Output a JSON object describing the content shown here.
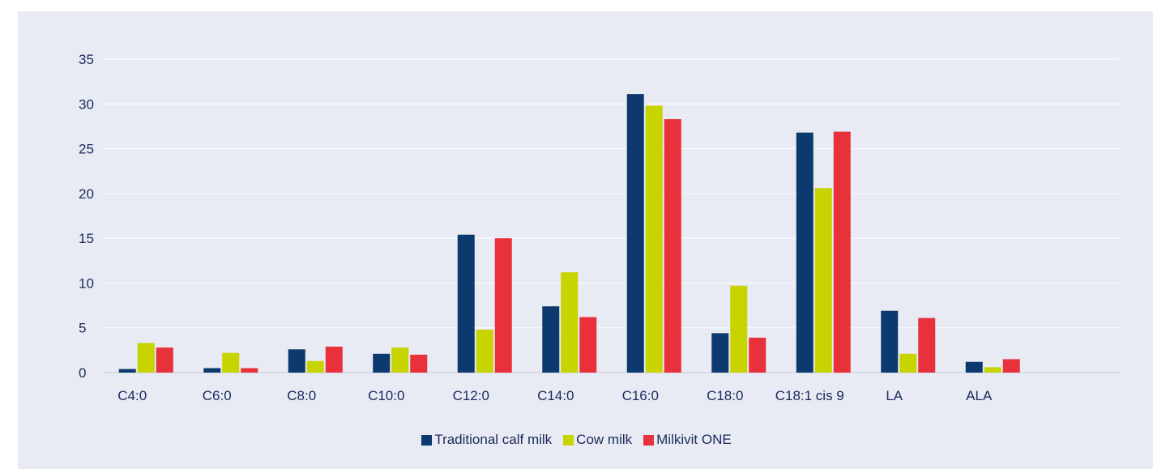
{
  "chart_data": {
    "type": "bar",
    "title": "",
    "xlabel": "",
    "ylabel": "",
    "ylim": [
      0,
      35
    ],
    "yticks": [
      0,
      5,
      10,
      15,
      20,
      25,
      30,
      35
    ],
    "grid": true,
    "legend_position": "bottom",
    "categories": [
      "C4:0",
      "C6:0",
      "C8:0",
      "C10:0",
      "C12:0",
      "C14:0",
      "C16:0",
      "C18:0",
      "C18:1 cis 9",
      "LA",
      "ALA",
      ""
    ],
    "series": [
      {
        "name": "Traditional calf milk",
        "color": "#0d3a6e",
        "values": [
          0.4,
          0.5,
          2.6,
          2.1,
          15.4,
          7.4,
          31.1,
          4.4,
          26.8,
          6.9,
          1.2,
          null
        ]
      },
      {
        "name": "Cow milk",
        "color": "#c8d400",
        "values": [
          3.3,
          2.2,
          1.3,
          2.8,
          4.8,
          11.2,
          29.8,
          9.7,
          20.6,
          2.1,
          0.6,
          null
        ]
      },
      {
        "name": "Milkivit ONE",
        "color": "#e8313a",
        "values": [
          2.8,
          0.5,
          2.9,
          2.0,
          15.0,
          6.2,
          28.3,
          3.9,
          26.9,
          6.1,
          1.5,
          null
        ]
      }
    ],
    "legend": [
      "Traditional calf milk",
      "Cow milk",
      "Milkivit ONE"
    ]
  }
}
